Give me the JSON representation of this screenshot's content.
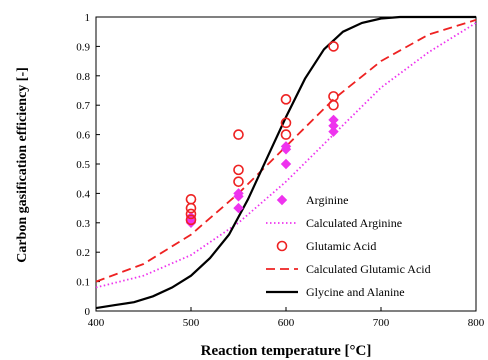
{
  "chart_data": {
    "type": "scatter",
    "xlabel": "Reaction temperature [°C]",
    "ylabel": "Carbon gasification efficiency [-]",
    "xlim": [
      400,
      800
    ],
    "ylim": [
      0,
      1
    ],
    "x_ticks": [
      400,
      500,
      600,
      700,
      800
    ],
    "x_tick_labels": [
      "400",
      "500",
      "600",
      "700",
      "800"
    ],
    "y_ticks": [
      0,
      0.1,
      0.2,
      0.3,
      0.4,
      0.5,
      0.6,
      0.7,
      0.8,
      0.9,
      1
    ],
    "y_tick_labels": [
      "0",
      "0.1",
      "0.2",
      "0.3",
      "0.4",
      "0.5",
      "0.6",
      "0.7",
      "0.8",
      "0.9",
      "1"
    ],
    "grid": false,
    "legend_position": "bottom-right",
    "series": [
      {
        "name": "Arginine",
        "kind": "scatter",
        "marker": "diamond",
        "color": "#ee33ee",
        "points": [
          [
            500,
            0.3
          ],
          [
            500,
            0.31
          ],
          [
            500,
            0.32
          ],
          [
            550,
            0.35
          ],
          [
            550,
            0.39
          ],
          [
            550,
            0.4
          ],
          [
            600,
            0.5
          ],
          [
            600,
            0.55
          ],
          [
            600,
            0.56
          ],
          [
            650,
            0.61
          ],
          [
            650,
            0.63
          ],
          [
            650,
            0.65
          ]
        ]
      },
      {
        "name": "Calculated Arginine",
        "kind": "line",
        "style": "dotted",
        "color": "#ee33ee",
        "points": [
          [
            400,
            0.08
          ],
          [
            450,
            0.12
          ],
          [
            500,
            0.19
          ],
          [
            550,
            0.3
          ],
          [
            600,
            0.44
          ],
          [
            650,
            0.6
          ],
          [
            700,
            0.76
          ],
          [
            750,
            0.88
          ],
          [
            800,
            0.98
          ]
        ]
      },
      {
        "name": "Glutamic Acid",
        "kind": "scatter",
        "marker": "circle",
        "color": "#ee2222",
        "points": [
          [
            500,
            0.31
          ],
          [
            500,
            0.33
          ],
          [
            500,
            0.35
          ],
          [
            500,
            0.38
          ],
          [
            550,
            0.44
          ],
          [
            550,
            0.48
          ],
          [
            550,
            0.6
          ],
          [
            600,
            0.6
          ],
          [
            600,
            0.64
          ],
          [
            600,
            0.72
          ],
          [
            650,
            0.7
          ],
          [
            650,
            0.73
          ],
          [
            650,
            0.9
          ]
        ]
      },
      {
        "name": "Calculated Glutamic Acid",
        "kind": "line",
        "style": "dashed",
        "color": "#ee2222",
        "points": [
          [
            400,
            0.1
          ],
          [
            450,
            0.16
          ],
          [
            500,
            0.26
          ],
          [
            550,
            0.4
          ],
          [
            600,
            0.56
          ],
          [
            650,
            0.72
          ],
          [
            700,
            0.85
          ],
          [
            750,
            0.94
          ],
          [
            800,
            0.99
          ]
        ]
      },
      {
        "name": "Glycine and Alanine",
        "kind": "line",
        "style": "solid",
        "color": "#000000",
        "points": [
          [
            400,
            0.01
          ],
          [
            420,
            0.02
          ],
          [
            440,
            0.03
          ],
          [
            460,
            0.05
          ],
          [
            480,
            0.08
          ],
          [
            500,
            0.12
          ],
          [
            520,
            0.18
          ],
          [
            540,
            0.26
          ],
          [
            560,
            0.38
          ],
          [
            580,
            0.52
          ],
          [
            600,
            0.66
          ],
          [
            620,
            0.79
          ],
          [
            640,
            0.89
          ],
          [
            660,
            0.95
          ],
          [
            680,
            0.98
          ],
          [
            700,
            0.995
          ],
          [
            720,
            1.0
          ],
          [
            800,
            1.0
          ]
        ]
      }
    ]
  }
}
